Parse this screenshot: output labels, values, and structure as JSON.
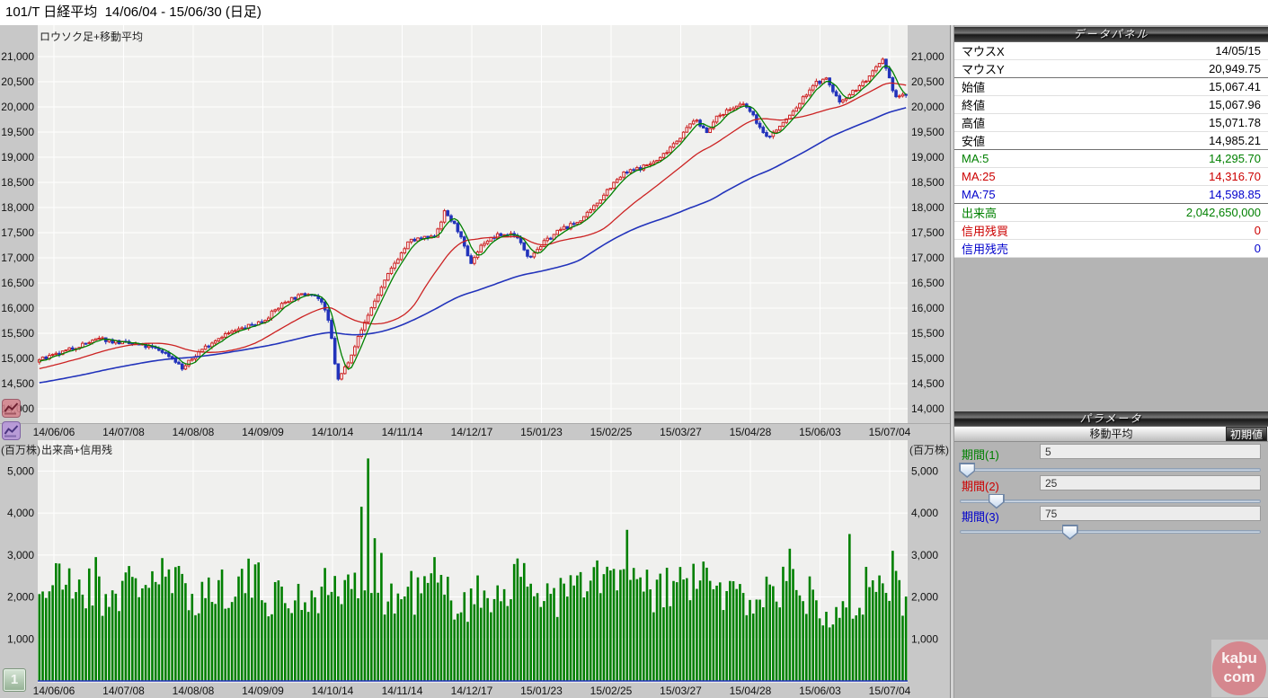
{
  "title_bar": {
    "title": "101/T 日経平均  14/06/04 - 15/06/30 (日足)"
  },
  "price_chart": {
    "label": "ロウソク足+移動平均"
  },
  "volume_chart": {
    "label": "出来高+信用残",
    "unit": "(百万株)"
  },
  "pager": {
    "page_label": "1"
  },
  "x_axis": {
    "labels": [
      "14/06/06",
      "14/07/08",
      "14/08/08",
      "14/09/09",
      "14/10/14",
      "14/11/14",
      "14/12/17",
      "15/01/23",
      "15/02/25",
      "15/03/27",
      "15/04/28",
      "15/06/03",
      "15/07/04"
    ]
  },
  "data_panel": {
    "header": "データパネル",
    "rows": [
      {
        "label": "マウスX",
        "value": "14/05/15",
        "color": "#000000",
        "sep": false
      },
      {
        "label": "マウスY",
        "value": "20,949.75",
        "color": "#000000",
        "sep": true
      },
      {
        "label": "始値",
        "value": "15,067.41",
        "color": "#000000",
        "sep": false
      },
      {
        "label": "終値",
        "value": "15,067.96",
        "color": "#000000",
        "sep": false
      },
      {
        "label": "高値",
        "value": "15,071.78",
        "color": "#000000",
        "sep": false
      },
      {
        "label": "安値",
        "value": "14,985.21",
        "color": "#000000",
        "sep": true
      },
      {
        "label": "MA:5",
        "value": "14,295.70",
        "color": "#008000",
        "sep": false
      },
      {
        "label": "MA:25",
        "value": "14,316.70",
        "color": "#cc0000",
        "sep": false
      },
      {
        "label": "MA:75",
        "value": "14,598.85",
        "color": "#0000cc",
        "sep": true
      },
      {
        "label": "出来高",
        "value": "2,042,650,000",
        "color": "#008000",
        "sep": false
      },
      {
        "label": "信用残買",
        "value": "0",
        "color": "#cc0000",
        "sep": false
      },
      {
        "label": "信用残売",
        "value": "0",
        "color": "#0000cc",
        "sep": false
      }
    ]
  },
  "parameter_panel": {
    "header": "パラメータ",
    "subheader": "移動平均",
    "reset_button": "初期値",
    "sliders": [
      {
        "label": "期間(1)",
        "value": "5",
        "color": "#008000",
        "max": 200
      },
      {
        "label": "期間(2)",
        "value": "25",
        "color": "#cc0000",
        "max": 200
      },
      {
        "label": "期間(3)",
        "value": "75",
        "color": "#0000cc",
        "max": 200
      }
    ]
  },
  "logo": {
    "line1": "kabu",
    "dot": "・",
    "line2": "com",
    "color": "#d5878e"
  },
  "chart_data": [
    {
      "type": "candlestick",
      "title": "ロウソク足+移動平均",
      "x_range": [
        "14/06/04",
        "15/06/30"
      ],
      "x_tick_labels": [
        "14/06/06",
        "14/07/08",
        "14/08/08",
        "14/09/09",
        "14/10/14",
        "14/11/14",
        "14/12/17",
        "15/01/23",
        "15/02/25",
        "15/03/27",
        "15/04/28",
        "15/06/03",
        "15/07/04"
      ],
      "ylim": [
        13750,
        21500
      ],
      "y_ticks": [
        {
          "v": 21000,
          "label": "21,000"
        },
        {
          "v": 20500,
          "label": "20,500"
        },
        {
          "v": 20000,
          "label": "20,000"
        },
        {
          "v": 19500,
          "label": "19,500"
        },
        {
          "v": 19000,
          "label": "19,000"
        },
        {
          "v": 18500,
          "label": "18,500"
        },
        {
          "v": 18000,
          "label": "18,000"
        },
        {
          "v": 17500,
          "label": "17,500"
        },
        {
          "v": 17000,
          "label": "17,000"
        },
        {
          "v": 16500,
          "label": "16,500"
        },
        {
          "v": 16000,
          "label": "16,000"
        },
        {
          "v": 15500,
          "label": "15,500"
        },
        {
          "v": 15000,
          "label": "15,000"
        },
        {
          "v": 14500,
          "label": "14,500"
        },
        {
          "v": 14000,
          "label": "14,000"
        }
      ],
      "n_candles": 262,
      "warmup_candles": 75,
      "trend_anchors": [
        [
          -0.29,
          14150
        ],
        [
          -0.18,
          14380
        ],
        [
          -0.08,
          14650
        ],
        [
          -0.02,
          14900
        ],
        [
          0.0,
          14970
        ],
        [
          0.02,
          15070
        ],
        [
          0.045,
          15250
        ],
        [
          0.07,
          15390
        ],
        [
          0.095,
          15310
        ],
        [
          0.12,
          15250
        ],
        [
          0.14,
          15160
        ],
        [
          0.155,
          15000
        ],
        [
          0.165,
          14790
        ],
        [
          0.185,
          15150
        ],
        [
          0.21,
          15450
        ],
        [
          0.235,
          15600
        ],
        [
          0.258,
          15750
        ],
        [
          0.285,
          16150
        ],
        [
          0.313,
          16320
        ],
        [
          0.325,
          16150
        ],
        [
          0.335,
          15650
        ],
        [
          0.344,
          14540
        ],
        [
          0.355,
          14900
        ],
        [
          0.365,
          15300
        ],
        [
          0.38,
          15900
        ],
        [
          0.396,
          16450
        ],
        [
          0.41,
          16900
        ],
        [
          0.427,
          17330
        ],
        [
          0.44,
          17380
        ],
        [
          0.455,
          17400
        ],
        [
          0.468,
          17920
        ],
        [
          0.483,
          17550
        ],
        [
          0.497,
          16880
        ],
        [
          0.512,
          17300
        ],
        [
          0.53,
          17450
        ],
        [
          0.548,
          17480
        ],
        [
          0.565,
          17020
        ],
        [
          0.582,
          17300
        ],
        [
          0.6,
          17550
        ],
        [
          0.618,
          17680
        ],
        [
          0.635,
          17900
        ],
        [
          0.655,
          18350
        ],
        [
          0.675,
          18680
        ],
        [
          0.695,
          18800
        ],
        [
          0.715,
          18950
        ],
        [
          0.73,
          19250
        ],
        [
          0.742,
          19450
        ],
        [
          0.755,
          19750
        ],
        [
          0.77,
          19520
        ],
        [
          0.785,
          19850
        ],
        [
          0.8,
          19980
        ],
        [
          0.814,
          20050
        ],
        [
          0.828,
          19700
        ],
        [
          0.838,
          19380
        ],
        [
          0.852,
          19560
        ],
        [
          0.872,
          19950
        ],
        [
          0.893,
          20450
        ],
        [
          0.908,
          20550
        ],
        [
          0.923,
          20100
        ],
        [
          0.942,
          20350
        ],
        [
          0.958,
          20600
        ],
        [
          0.973,
          20920
        ],
        [
          0.988,
          20200
        ],
        [
          1.0,
          20240
        ]
      ],
      "up_style": {
        "fill": "#ffffff",
        "stroke": "#cc2222"
      },
      "down_style": {
        "fill": "#2233bb",
        "stroke": "#2233bb"
      },
      "ma_series": [
        {
          "name": "MA:5",
          "period": 5,
          "color": "#008000"
        },
        {
          "name": "MA:25",
          "period": 25,
          "color": "#cc2222"
        },
        {
          "name": "MA:75",
          "period": 75,
          "color": "#2233bb"
        }
      ],
      "bg": "#f0f0ee",
      "grid_color": "#ffffff",
      "axis_strip_color": "#c8c8c8"
    },
    {
      "type": "bar",
      "title": "出来高+信用残",
      "unit": "(百万株)",
      "ylim": [
        0,
        5650
      ],
      "y_ticks": [
        {
          "v": 5000,
          "label": "5,000"
        },
        {
          "v": 4000,
          "label": "4,000"
        },
        {
          "v": 3000,
          "label": "3,000"
        },
        {
          "v": 2000,
          "label": "2,000"
        },
        {
          "v": 1000,
          "label": "1,000"
        }
      ],
      "x_tick_labels": [
        "14/06/06",
        "14/07/08",
        "14/08/08",
        "14/09/09",
        "14/10/14",
        "14/11/14",
        "14/12/17",
        "15/01/23",
        "15/02/25",
        "15/03/27",
        "15/04/28",
        "15/06/03",
        "15/07/04"
      ],
      "bar_color": "#008000",
      "base_range": [
        1550,
        2750
      ],
      "spikes": [
        [
          0.065,
          2950
        ],
        [
          0.372,
          4150
        ],
        [
          0.38,
          5300
        ],
        [
          0.388,
          3400
        ],
        [
          0.396,
          3050
        ],
        [
          0.455,
          2950
        ],
        [
          0.68,
          3600
        ],
        [
          0.865,
          3150
        ],
        [
          0.935,
          3500
        ],
        [
          0.985,
          3100
        ]
      ],
      "baseline_series": {
        "name": "信用残",
        "color": "#2233bb",
        "value": 0
      }
    }
  ]
}
